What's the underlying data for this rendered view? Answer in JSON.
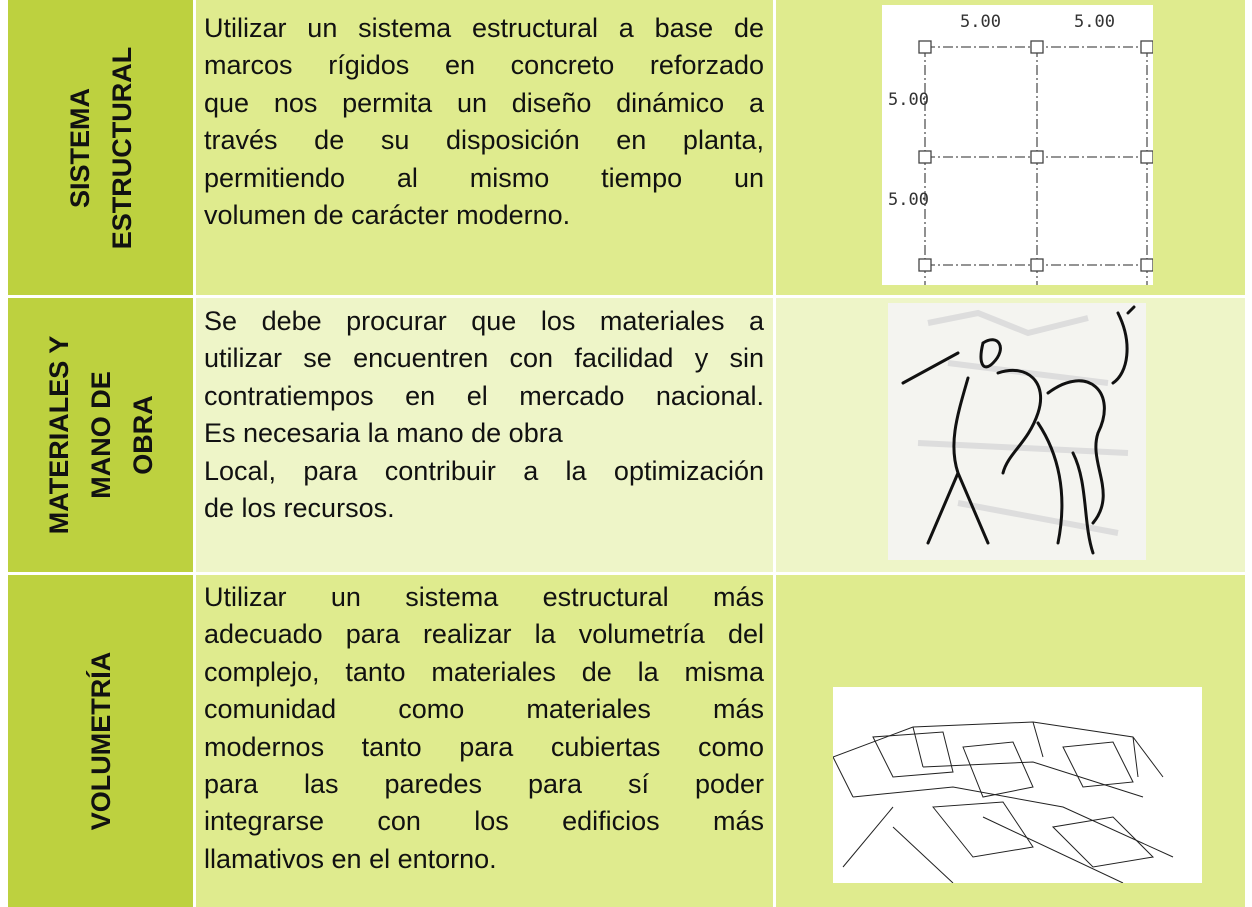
{
  "rows": [
    {
      "heading": [
        "SISTEMA",
        "ESTRUCTURAL"
      ],
      "paragraphs": [
        [
          "Utilizar un sistema estructural a base de",
          "marcos rígidos en concreto reforzado",
          "que nos permita un diseño dinámico a",
          "través de su disposición en planta,",
          "permitiendo al mismo tiempo un",
          "volumen de carácter moderno."
        ]
      ],
      "image_labels": [
        "5.00",
        "5.00",
        "5.00",
        "5.00"
      ]
    },
    {
      "heading": [
        "MATERIALES Y",
        "MANO DE",
        "OBRA"
      ],
      "paragraphs": [
        [
          "Se debe procurar que los materiales a",
          "utilizar se encuentren con facilidad y sin",
          "contratiempos en el mercado nacional.",
          "Es necesaria la mano de obra"
        ],
        [
          "Local, para contribuir a la optimización",
          "de los recursos."
        ]
      ]
    },
    {
      "heading": [
        "VOLUMETRÍA"
      ],
      "paragraphs": [
        [
          "Utilizar un sistema estructural más",
          "adecuado para realizar la volumetría del",
          "complejo, tanto materiales de la misma",
          "comunidad como materiales más",
          "modernos tanto para cubiertas como",
          "para las paredes para sí poder",
          "integrarse con los edificios más",
          "llamativos en el entorno."
        ]
      ]
    }
  ]
}
